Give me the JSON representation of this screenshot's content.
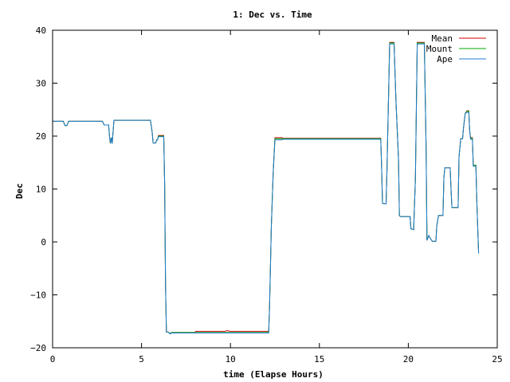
{
  "chart_data": {
    "type": "line",
    "title": "1: Dec vs. Time",
    "xlabel": "time (Elapse Hours)",
    "ylabel": "Dec",
    "xlim": [
      0,
      25
    ],
    "ylim": [
      -20,
      40
    ],
    "xticks": [
      0,
      5,
      10,
      15,
      20,
      25
    ],
    "yticks": [
      -20,
      -10,
      0,
      10,
      20,
      30,
      40
    ],
    "grid": false,
    "legend_position": "top-right",
    "series": [
      {
        "name": "Mean",
        "color": "#cc0000",
        "points": [
          [
            0,
            22.8
          ],
          [
            0.6,
            22.8
          ],
          [
            0.7,
            22.0
          ],
          [
            0.8,
            22.0
          ],
          [
            0.9,
            22.8
          ],
          [
            2.8,
            22.8
          ],
          [
            2.9,
            22.1
          ],
          [
            3.15,
            22.1
          ],
          [
            3.2,
            20.0
          ],
          [
            3.25,
            18.6
          ],
          [
            3.3,
            19.7
          ],
          [
            3.35,
            18.6
          ],
          [
            3.45,
            23.0
          ],
          [
            5.5,
            23.0
          ],
          [
            5.6,
            20.7
          ],
          [
            5.65,
            18.7
          ],
          [
            5.8,
            18.7
          ],
          [
            5.85,
            19.3
          ],
          [
            5.9,
            19.3
          ],
          [
            5.95,
            20.1
          ],
          [
            6.25,
            20.1
          ],
          [
            6.3,
            11.0
          ],
          [
            6.35,
            -8.0
          ],
          [
            6.4,
            -17.0
          ],
          [
            6.5,
            -17.0
          ],
          [
            6.6,
            -17.3
          ],
          [
            6.7,
            -17.1
          ],
          [
            8.0,
            -17.1
          ],
          [
            8.05,
            -16.9
          ],
          [
            9.7,
            -16.9
          ],
          [
            9.75,
            -16.8
          ],
          [
            9.9,
            -16.8
          ],
          [
            9.95,
            -16.9
          ],
          [
            12.15,
            -16.9
          ],
          [
            12.2,
            -12.0
          ],
          [
            12.3,
            3.0
          ],
          [
            12.4,
            13.0
          ],
          [
            12.5,
            19.7
          ],
          [
            12.9,
            19.7
          ],
          [
            12.95,
            19.6
          ],
          [
            18.45,
            19.6
          ],
          [
            18.5,
            14.0
          ],
          [
            18.55,
            7.3
          ],
          [
            18.75,
            7.2
          ],
          [
            18.8,
            13.5
          ],
          [
            18.95,
            37.7
          ],
          [
            19.2,
            37.7
          ],
          [
            19.3,
            27.0
          ],
          [
            19.45,
            15.5
          ],
          [
            19.5,
            5.0
          ],
          [
            19.55,
            4.8
          ],
          [
            20.1,
            4.8
          ],
          [
            20.15,
            2.5
          ],
          [
            20.3,
            2.3
          ],
          [
            20.4,
            12.0
          ],
          [
            20.5,
            37.7
          ],
          [
            20.9,
            37.7
          ],
          [
            21.0,
            18.0
          ],
          [
            21.05,
            0.3
          ],
          [
            21.15,
            1.2
          ],
          [
            21.25,
            0.6
          ],
          [
            21.35,
            0.1
          ],
          [
            21.55,
            0.1
          ],
          [
            21.6,
            3.0
          ],
          [
            21.7,
            5.0
          ],
          [
            21.95,
            5.0
          ],
          [
            22.0,
            12.0
          ],
          [
            22.05,
            14.0
          ],
          [
            22.35,
            14.0
          ],
          [
            22.4,
            10.0
          ],
          [
            22.45,
            6.5
          ],
          [
            22.8,
            6.5
          ],
          [
            22.85,
            16.0
          ],
          [
            22.95,
            19.5
          ],
          [
            23.05,
            19.5
          ],
          [
            23.1,
            21.5
          ],
          [
            23.2,
            24.3
          ],
          [
            23.3,
            24.8
          ],
          [
            23.4,
            24.8
          ],
          [
            23.45,
            21.0
          ],
          [
            23.5,
            19.7
          ],
          [
            23.6,
            19.7
          ],
          [
            23.65,
            14.5
          ],
          [
            23.8,
            14.5
          ],
          [
            23.85,
            8.0
          ],
          [
            23.9,
            3.0
          ],
          [
            23.95,
            -2.0
          ]
        ]
      },
      {
        "name": "Mount",
        "color": "#00aa00",
        "points": [
          [
            0,
            22.8
          ],
          [
            0.6,
            22.8
          ],
          [
            0.7,
            22.0
          ],
          [
            0.8,
            22.0
          ],
          [
            0.9,
            22.8
          ],
          [
            2.8,
            22.8
          ],
          [
            2.9,
            22.1
          ],
          [
            3.15,
            22.1
          ],
          [
            3.2,
            20.0
          ],
          [
            3.25,
            18.6
          ],
          [
            3.3,
            19.7
          ],
          [
            3.35,
            18.6
          ],
          [
            3.45,
            23.0
          ],
          [
            5.5,
            23.0
          ],
          [
            5.6,
            20.7
          ],
          [
            5.65,
            18.7
          ],
          [
            5.8,
            18.7
          ],
          [
            5.85,
            19.3
          ],
          [
            5.9,
            19.3
          ],
          [
            5.95,
            20.0
          ],
          [
            6.25,
            20.0
          ],
          [
            6.3,
            11.0
          ],
          [
            6.35,
            -8.0
          ],
          [
            6.4,
            -17.0
          ],
          [
            6.5,
            -17.0
          ],
          [
            6.6,
            -17.3
          ],
          [
            6.7,
            -17.1
          ],
          [
            12.15,
            -17.1
          ],
          [
            12.2,
            -12.0
          ],
          [
            12.3,
            3.0
          ],
          [
            12.4,
            13.0
          ],
          [
            12.5,
            19.5
          ],
          [
            12.9,
            19.5
          ],
          [
            12.95,
            19.5
          ],
          [
            18.45,
            19.5
          ],
          [
            18.5,
            14.0
          ],
          [
            18.55,
            7.3
          ],
          [
            18.75,
            7.2
          ],
          [
            18.8,
            13.5
          ],
          [
            18.95,
            37.6
          ],
          [
            19.2,
            37.6
          ],
          [
            19.3,
            27.0
          ],
          [
            19.45,
            15.5
          ],
          [
            19.5,
            5.0
          ],
          [
            19.55,
            4.8
          ],
          [
            20.1,
            4.8
          ],
          [
            20.15,
            2.5
          ],
          [
            20.3,
            2.3
          ],
          [
            20.4,
            12.0
          ],
          [
            20.5,
            37.6
          ],
          [
            20.9,
            37.6
          ],
          [
            21.0,
            18.0
          ],
          [
            21.05,
            0.3
          ],
          [
            21.15,
            1.2
          ],
          [
            21.25,
            0.6
          ],
          [
            21.35,
            0.1
          ],
          [
            21.55,
            0.1
          ],
          [
            21.6,
            3.0
          ],
          [
            21.7,
            5.0
          ],
          [
            21.95,
            5.0
          ],
          [
            22.0,
            12.0
          ],
          [
            22.05,
            14.0
          ],
          [
            22.35,
            14.0
          ],
          [
            22.4,
            10.0
          ],
          [
            22.45,
            6.5
          ],
          [
            22.8,
            6.5
          ],
          [
            22.85,
            16.0
          ],
          [
            22.95,
            19.5
          ],
          [
            23.05,
            19.5
          ],
          [
            23.1,
            21.5
          ],
          [
            23.2,
            24.3
          ],
          [
            23.3,
            24.7
          ],
          [
            23.4,
            24.7
          ],
          [
            23.45,
            21.0
          ],
          [
            23.5,
            19.6
          ],
          [
            23.6,
            19.6
          ],
          [
            23.65,
            14.5
          ],
          [
            23.8,
            14.5
          ],
          [
            23.85,
            8.0
          ],
          [
            23.9,
            3.0
          ],
          [
            23.95,
            -2.0
          ]
        ]
      },
      {
        "name": "Ape",
        "color": "#1f7bd0",
        "points": [
          [
            0,
            22.8
          ],
          [
            0.6,
            22.8
          ],
          [
            0.7,
            22.0
          ],
          [
            0.8,
            22.0
          ],
          [
            0.9,
            22.8
          ],
          [
            2.8,
            22.8
          ],
          [
            2.9,
            22.1
          ],
          [
            3.15,
            22.1
          ],
          [
            3.2,
            20.0
          ],
          [
            3.25,
            18.6
          ],
          [
            3.3,
            19.7
          ],
          [
            3.35,
            18.6
          ],
          [
            3.45,
            23.0
          ],
          [
            5.5,
            23.0
          ],
          [
            5.6,
            20.7
          ],
          [
            5.65,
            18.7
          ],
          [
            5.8,
            18.7
          ],
          [
            5.85,
            19.3
          ],
          [
            5.9,
            19.3
          ],
          [
            5.95,
            19.9
          ],
          [
            6.25,
            19.9
          ],
          [
            6.3,
            11.0
          ],
          [
            6.35,
            -8.0
          ],
          [
            6.4,
            -17.0
          ],
          [
            6.5,
            -17.0
          ],
          [
            6.6,
            -17.4
          ],
          [
            6.7,
            -17.2
          ],
          [
            12.15,
            -17.2
          ],
          [
            12.2,
            -12.0
          ],
          [
            12.3,
            3.0
          ],
          [
            12.4,
            13.0
          ],
          [
            12.5,
            19.3
          ],
          [
            12.9,
            19.3
          ],
          [
            12.95,
            19.4
          ],
          [
            18.45,
            19.4
          ],
          [
            18.5,
            14.0
          ],
          [
            18.55,
            7.3
          ],
          [
            18.75,
            7.2
          ],
          [
            18.8,
            13.5
          ],
          [
            18.95,
            37.4
          ],
          [
            19.2,
            37.4
          ],
          [
            19.3,
            27.0
          ],
          [
            19.45,
            15.5
          ],
          [
            19.5,
            5.0
          ],
          [
            19.55,
            4.8
          ],
          [
            20.1,
            4.8
          ],
          [
            20.15,
            2.5
          ],
          [
            20.3,
            2.3
          ],
          [
            20.4,
            12.0
          ],
          [
            20.5,
            37.4
          ],
          [
            20.9,
            37.4
          ],
          [
            21.0,
            18.0
          ],
          [
            21.05,
            0.3
          ],
          [
            21.15,
            1.2
          ],
          [
            21.25,
            0.6
          ],
          [
            21.35,
            0.1
          ],
          [
            21.55,
            0.1
          ],
          [
            21.6,
            3.0
          ],
          [
            21.7,
            5.0
          ],
          [
            21.95,
            5.0
          ],
          [
            22.0,
            12.0
          ],
          [
            22.05,
            14.0
          ],
          [
            22.35,
            14.0
          ],
          [
            22.4,
            10.0
          ],
          [
            22.45,
            6.5
          ],
          [
            22.8,
            6.5
          ],
          [
            22.85,
            16.0
          ],
          [
            22.95,
            19.5
          ],
          [
            23.05,
            19.5
          ],
          [
            23.1,
            21.5
          ],
          [
            23.2,
            24.3
          ],
          [
            23.3,
            24.5
          ],
          [
            23.4,
            24.5
          ],
          [
            23.45,
            21.0
          ],
          [
            23.5,
            19.4
          ],
          [
            23.6,
            19.4
          ],
          [
            23.65,
            14.3
          ],
          [
            23.8,
            14.3
          ],
          [
            23.85,
            8.0
          ],
          [
            23.9,
            3.0
          ],
          [
            23.95,
            -2.2
          ]
        ]
      }
    ]
  }
}
